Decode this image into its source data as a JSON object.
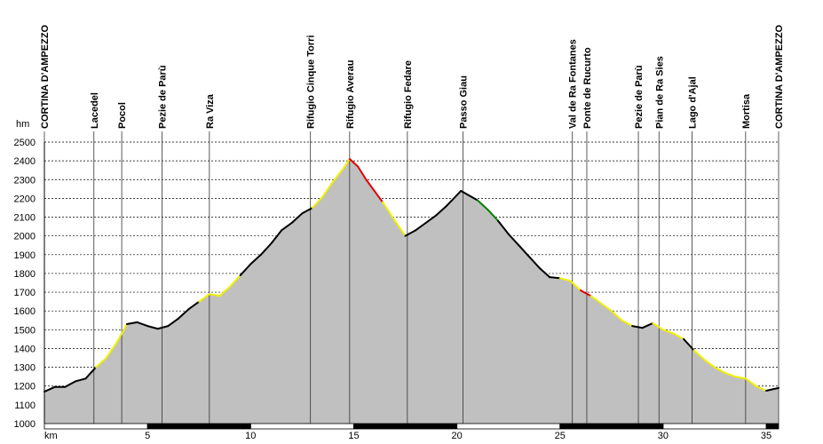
{
  "chart_data": {
    "type": "area",
    "y_label": "hm",
    "x_label": "km",
    "x": [
      0,
      0.5,
      1,
      1.5,
      2,
      2.5,
      3,
      3.5,
      4,
      4.5,
      5,
      5.5,
      6,
      6.5,
      7,
      7.5,
      8,
      8.5,
      9,
      9.5,
      10,
      10.5,
      11,
      11.5,
      12,
      12.5,
      13,
      13.5,
      14,
      14.5,
      14.8,
      15.2,
      15.6,
      16,
      16.4,
      17,
      17.5,
      18,
      18.5,
      19,
      19.5,
      20.2,
      21,
      21.5,
      22,
      22.5,
      23,
      23.5,
      24,
      24.5,
      25,
      25.5,
      26,
      26.5,
      27,
      27.5,
      28,
      28.5,
      29,
      29.5,
      30,
      30.5,
      31,
      31.5,
      32,
      32.5,
      33,
      33.5,
      34,
      34.5,
      35,
      35.6
    ],
    "values": [
      1170,
      1195,
      1195,
      1225,
      1240,
      1300,
      1350,
      1430,
      1530,
      1540,
      1520,
      1505,
      1520,
      1560,
      1610,
      1650,
      1690,
      1680,
      1730,
      1790,
      1850,
      1900,
      1960,
      2030,
      2070,
      2120,
      2150,
      2210,
      2290,
      2360,
      2410,
      2370,
      2300,
      2240,
      2180,
      2080,
      2000,
      2030,
      2070,
      2110,
      2160,
      2240,
      2190,
      2140,
      2080,
      2010,
      1950,
      1890,
      1830,
      1780,
      1775,
      1760,
      1710,
      1680,
      1640,
      1600,
      1550,
      1520,
      1510,
      1535,
      1500,
      1480,
      1450,
      1390,
      1340,
      1300,
      1270,
      1250,
      1240,
      1200,
      1175,
      1190
    ],
    "segment_colors": [
      "#000000",
      "#000000",
      "#000000",
      "#000000",
      "#000000",
      "#f0f000",
      "#f0f000",
      "#f0f000",
      "#000000",
      "#000000",
      "#000000",
      "#000000",
      "#000000",
      "#000000",
      "#000000",
      "#f0f000",
      "#f0f000",
      "#f0f000",
      "#f0f000",
      "#000000",
      "#000000",
      "#000000",
      "#000000",
      "#000000",
      "#000000",
      "#000000",
      "#f0f000",
      "#f0f000",
      "#f0f000",
      "#f0f000",
      "#e00000",
      "#e00000",
      "#e00000",
      "#e00000",
      "#f0f000",
      "#f0f000",
      "#000000",
      "#000000",
      "#000000",
      "#000000",
      "#000000",
      "#000000",
      "#008000",
      "#008000",
      "#000000",
      "#000000",
      "#000000",
      "#000000",
      "#000000",
      "#000000",
      "#f0f000",
      "#f0f000",
      "#e00000",
      "#f0f000",
      "#f0f000",
      "#f0f000",
      "#f0f000",
      "#000000",
      "#000000",
      "#f0f000",
      "#f0f000",
      "#f0f000",
      "#000000",
      "#f0f000",
      "#f0f000",
      "#f0f000",
      "#f0f000",
      "#f0f000",
      "#f0f000",
      "#f0f000",
      "#000000"
    ],
    "fill": "#c0c0c0",
    "xlim": [
      0,
      35.6
    ],
    "ylim": [
      1000,
      2500
    ],
    "xticks": [
      5,
      10,
      15,
      20,
      25,
      30,
      35
    ],
    "yticks": [
      1000,
      1100,
      1200,
      1300,
      1400,
      1500,
      1600,
      1700,
      1800,
      1900,
      2000,
      2100,
      2200,
      2300,
      2400,
      2500
    ],
    "grid": true,
    "waypoints": [
      {
        "km": 0,
        "label": "CORTINA D'AMPEZZO"
      },
      {
        "km": 2.4,
        "label": "Lacedel"
      },
      {
        "km": 3.75,
        "label": "Pocol"
      },
      {
        "km": 5.7,
        "label": "Pezie de Parù"
      },
      {
        "km": 8.0,
        "label": "Ra Viza"
      },
      {
        "km": 12.9,
        "label": "Rifugio Cinque Torri"
      },
      {
        "km": 14.8,
        "label": "Rifugio Averau"
      },
      {
        "km": 17.6,
        "label": "Rifugio Fedare"
      },
      {
        "km": 20.3,
        "label": "Passo Giau"
      },
      {
        "km": 25.6,
        "label": "Val de Ra Fontanes"
      },
      {
        "km": 26.3,
        "label": "Ponte de Rucurto"
      },
      {
        "km": 28.8,
        "label": "Pezie de Parù"
      },
      {
        "km": 29.8,
        "label": "Pian de Ra Sies"
      },
      {
        "km": 31.4,
        "label": "Lago d'Ajal"
      },
      {
        "km": 34.0,
        "label": "Mortisa"
      },
      {
        "km": 35.6,
        "label": "CORTINA D'AMPEZZO"
      }
    ]
  }
}
